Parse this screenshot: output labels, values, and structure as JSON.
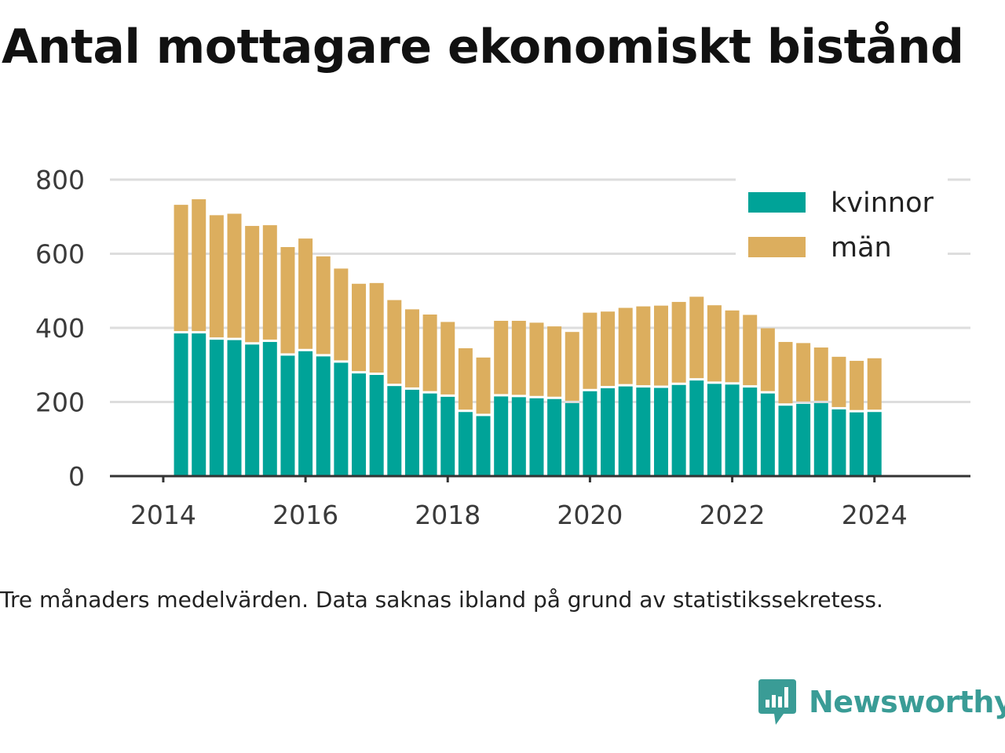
{
  "colors": {
    "kvinnor": "#00a398",
    "man": "#dcae5e",
    "grid": "#dddddd",
    "axis": "#333333",
    "brand": "#3a9c96"
  },
  "chart_data": {
    "type": "bar",
    "stacked": true,
    "title": "Antal mottagare ekonomiskt bistånd",
    "note": "Tre månaders medelvärden. Data saknas ibland på grund av statistikssekretess.",
    "xlabel": "",
    "ylabel": "",
    "ylim": [
      0,
      800
    ],
    "yticks": [
      0,
      200,
      400,
      600,
      800
    ],
    "xticks": [
      "2014",
      "2016",
      "2018",
      "2020",
      "2022",
      "2024"
    ],
    "grid": true,
    "legend_position": "top-right",
    "x_format": "year.quarter",
    "x": [
      2014.25,
      2014.5,
      2014.75,
      2015.0,
      2015.25,
      2015.5,
      2015.75,
      2016.0,
      2016.25,
      2016.5,
      2016.75,
      2017.0,
      2017.25,
      2017.5,
      2017.75,
      2018.0,
      2018.25,
      2018.5,
      2018.75,
      2019.0,
      2019.25,
      2019.5,
      2019.75,
      2020.0,
      2020.25,
      2020.5,
      2020.75,
      2021.0,
      2021.25,
      2021.5,
      2021.75,
      2022.0,
      2022.25,
      2022.5,
      2022.75,
      2023.0,
      2023.25,
      2023.5,
      2023.75,
      2024.0
    ],
    "series": [
      {
        "name": "kvinnor",
        "values": [
          385,
          385,
          368,
          367,
          355,
          362,
          325,
          337,
          323,
          306,
          277,
          273,
          243,
          233,
          223,
          214,
          173,
          162,
          215,
          213,
          210,
          208,
          197,
          229,
          237,
          242,
          239,
          238,
          246,
          258,
          249,
          247,
          239,
          223,
          190,
          195,
          197,
          180,
          172,
          173
        ]
      },
      {
        "name": "män",
        "values": [
          347,
          362,
          336,
          341,
          320,
          315,
          293,
          304,
          270,
          254,
          242,
          248,
          232,
          217,
          213,
          202,
          172,
          158,
          204,
          206,
          204,
          196,
          192,
          212,
          207,
          212,
          219,
          222,
          224,
          226,
          212,
          200,
          196,
          176,
          172,
          164,
          150,
          142,
          139,
          145
        ]
      }
    ]
  },
  "brand": {
    "name": "Newsworthy",
    "icon": "newsworthy-logo-icon"
  }
}
